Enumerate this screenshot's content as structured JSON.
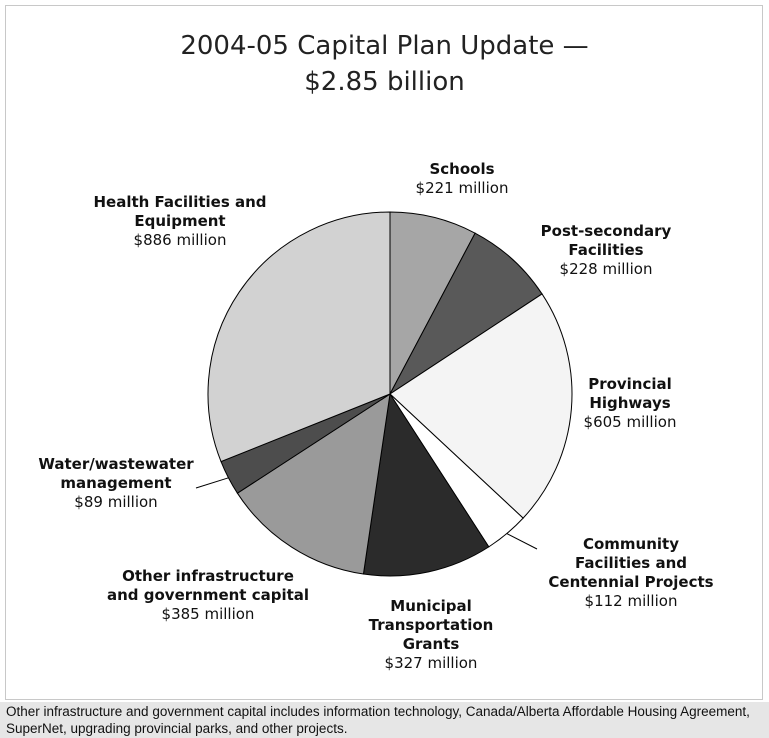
{
  "chart_data": {
    "type": "pie",
    "title": "2004-05 Capital Plan Update —",
    "subtitle": "$2.85 billion",
    "slices": [
      {
        "label": [
          "Schools"
        ],
        "value_text": "$221 million",
        "value": 221,
        "color": "#a6a6a6"
      },
      {
        "label": [
          "Post-secondary",
          "Facilities"
        ],
        "value_text": "$228 million",
        "value": 228,
        "color": "#595959"
      },
      {
        "label": [
          "Provincial",
          "Highways"
        ],
        "value_text": "$605 million",
        "value": 605,
        "color": "#f4f4f4"
      },
      {
        "label": [
          "Community",
          "Facilities and",
          "Centennial Projects"
        ],
        "value_text": "$112 million",
        "value": 112,
        "color": "#ffffff"
      },
      {
        "label": [
          "Municipal",
          "Transportation",
          "Grants"
        ],
        "value_text": "$327 million",
        "value": 327,
        "color": "#2b2b2b"
      },
      {
        "label": [
          "Other infrastructure",
          "and government capital"
        ],
        "value_text": "$385 million",
        "value": 385,
        "color": "#9a9a9a"
      },
      {
        "label": [
          "Water/wastewater",
          "management"
        ],
        "value_text": "$89 million",
        "value": 89,
        "color": "#4d4d4d"
      },
      {
        "label": [
          "Health Facilities and",
          "Equipment"
        ],
        "value_text": "$886 million",
        "value": 886,
        "color": "#d2d2d2"
      }
    ]
  },
  "footnote": "Other infrastructure and government capital includes information technology, Canada/Alberta Affordable Housing Agreement, SuperNet, upgrading provincial parks, and other projects."
}
